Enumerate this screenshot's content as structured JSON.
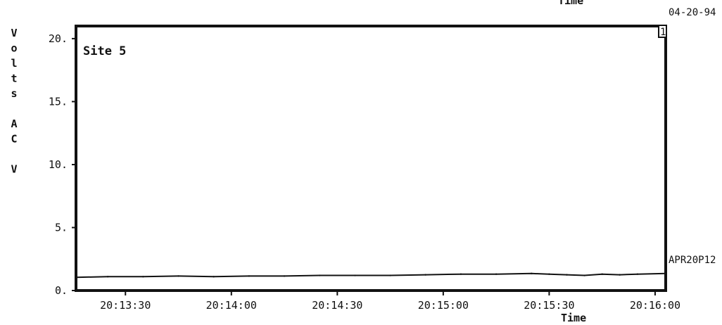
{
  "chart_data": {
    "type": "line",
    "title": "Site 5",
    "xlabel": "Time",
    "top_xlabel": "Time",
    "ylabel": "Volts AC V",
    "ylabel_chars": [
      "V",
      "o",
      "l",
      "t",
      "s",
      "",
      "A",
      "C",
      "",
      "V"
    ],
    "ylim": [
      0,
      21
    ],
    "y_ticks": [
      0,
      5,
      10,
      15,
      20
    ],
    "y_tick_labels": [
      "0.",
      "5.",
      "10.",
      "15.",
      "20."
    ],
    "x_ticks": [
      "20:13:30",
      "20:14:00",
      "20:14:30",
      "20:15:00",
      "20:15:30",
      "20:16:00"
    ],
    "x_tick_seconds": [
      30,
      60,
      90,
      120,
      150,
      180
    ],
    "xlim_seconds": [
      16,
      183
    ],
    "date_label": "04-20-94",
    "series_label": "APR20P12",
    "marker_label": "1",
    "grid": false,
    "series": [
      {
        "x": [
          16,
          25,
          35,
          45,
          55,
          65,
          75,
          85,
          95,
          105,
          115,
          125,
          135,
          145,
          150,
          155,
          160,
          165,
          170,
          175,
          183
        ],
        "values": [
          1.05,
          1.1,
          1.1,
          1.15,
          1.1,
          1.15,
          1.15,
          1.2,
          1.2,
          1.2,
          1.25,
          1.3,
          1.3,
          1.35,
          1.3,
          1.25,
          1.2,
          1.3,
          1.25,
          1.3,
          1.35
        ]
      }
    ],
    "colors": {
      "ink": "#111111",
      "background": "#ffffff"
    }
  }
}
